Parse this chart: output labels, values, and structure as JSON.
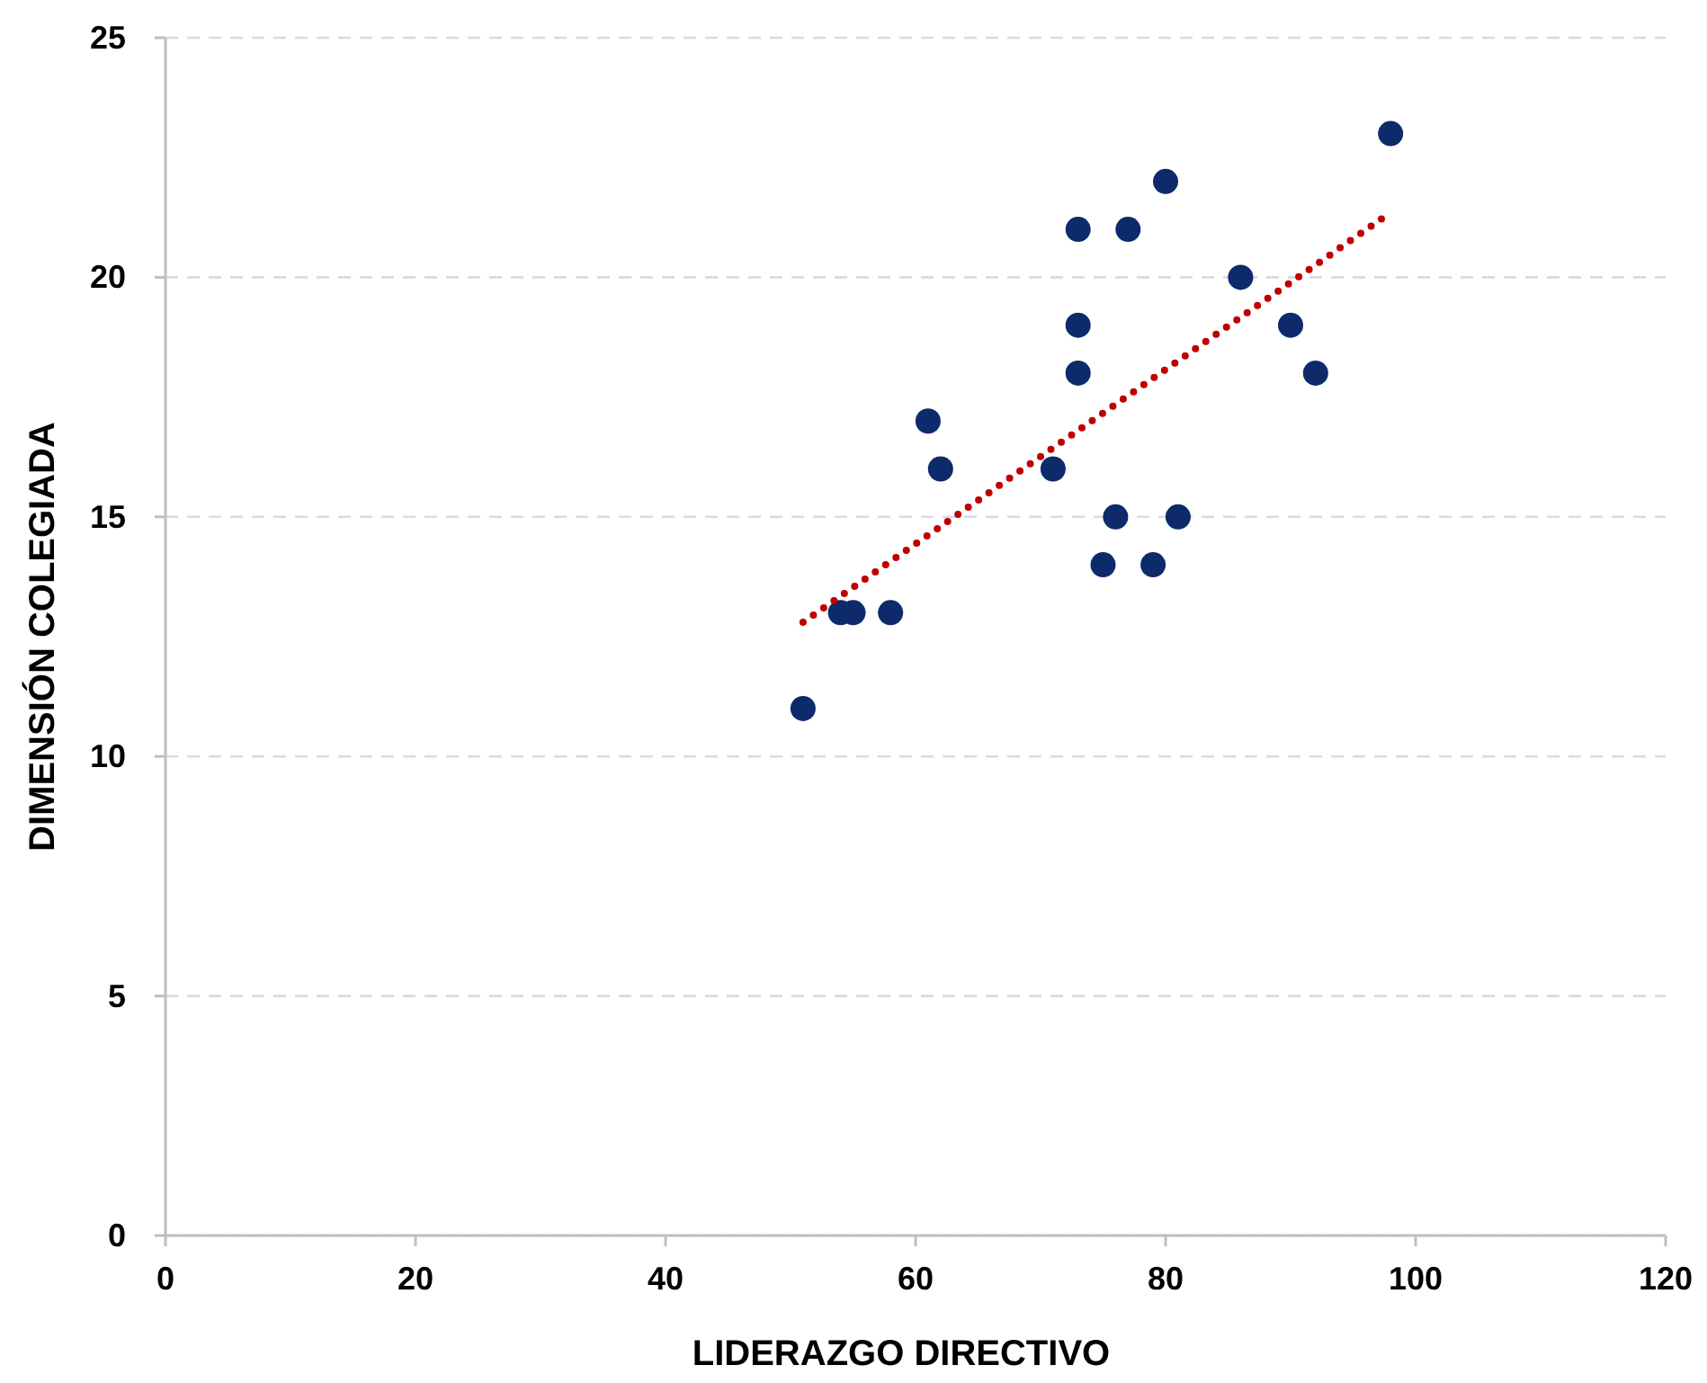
{
  "chart_data": {
    "type": "scatter",
    "xlabel": "LIDERAZGO DIRECTIVO",
    "ylabel": "DIMENSIÓN COLEGIADA",
    "xlim": [
      0,
      120
    ],
    "xticks": [
      0,
      20,
      40,
      60,
      80,
      100,
      120
    ],
    "ylim": [
      0,
      25
    ],
    "yticks": [
      0,
      5,
      10,
      15,
      20,
      25
    ],
    "grid": "y",
    "series": [
      {
        "marker": "circle",
        "color": "#0d2a6b",
        "x": [
          51,
          54,
          55,
          58,
          61,
          62,
          71,
          73,
          73,
          73,
          75,
          76,
          77,
          79,
          80,
          81,
          86,
          90,
          92,
          98
        ],
        "values": [
          11,
          13,
          13,
          13,
          17,
          16,
          16,
          21,
          19,
          18,
          14,
          15,
          21,
          14,
          22,
          15,
          20,
          19,
          18,
          23
        ]
      },
      {
        "type": "line",
        "marker": "none",
        "color": "#c00000",
        "line_style": "dotted",
        "x": [
          51,
          98
        ],
        "values": [
          12.8,
          21.35
        ]
      }
    ]
  }
}
